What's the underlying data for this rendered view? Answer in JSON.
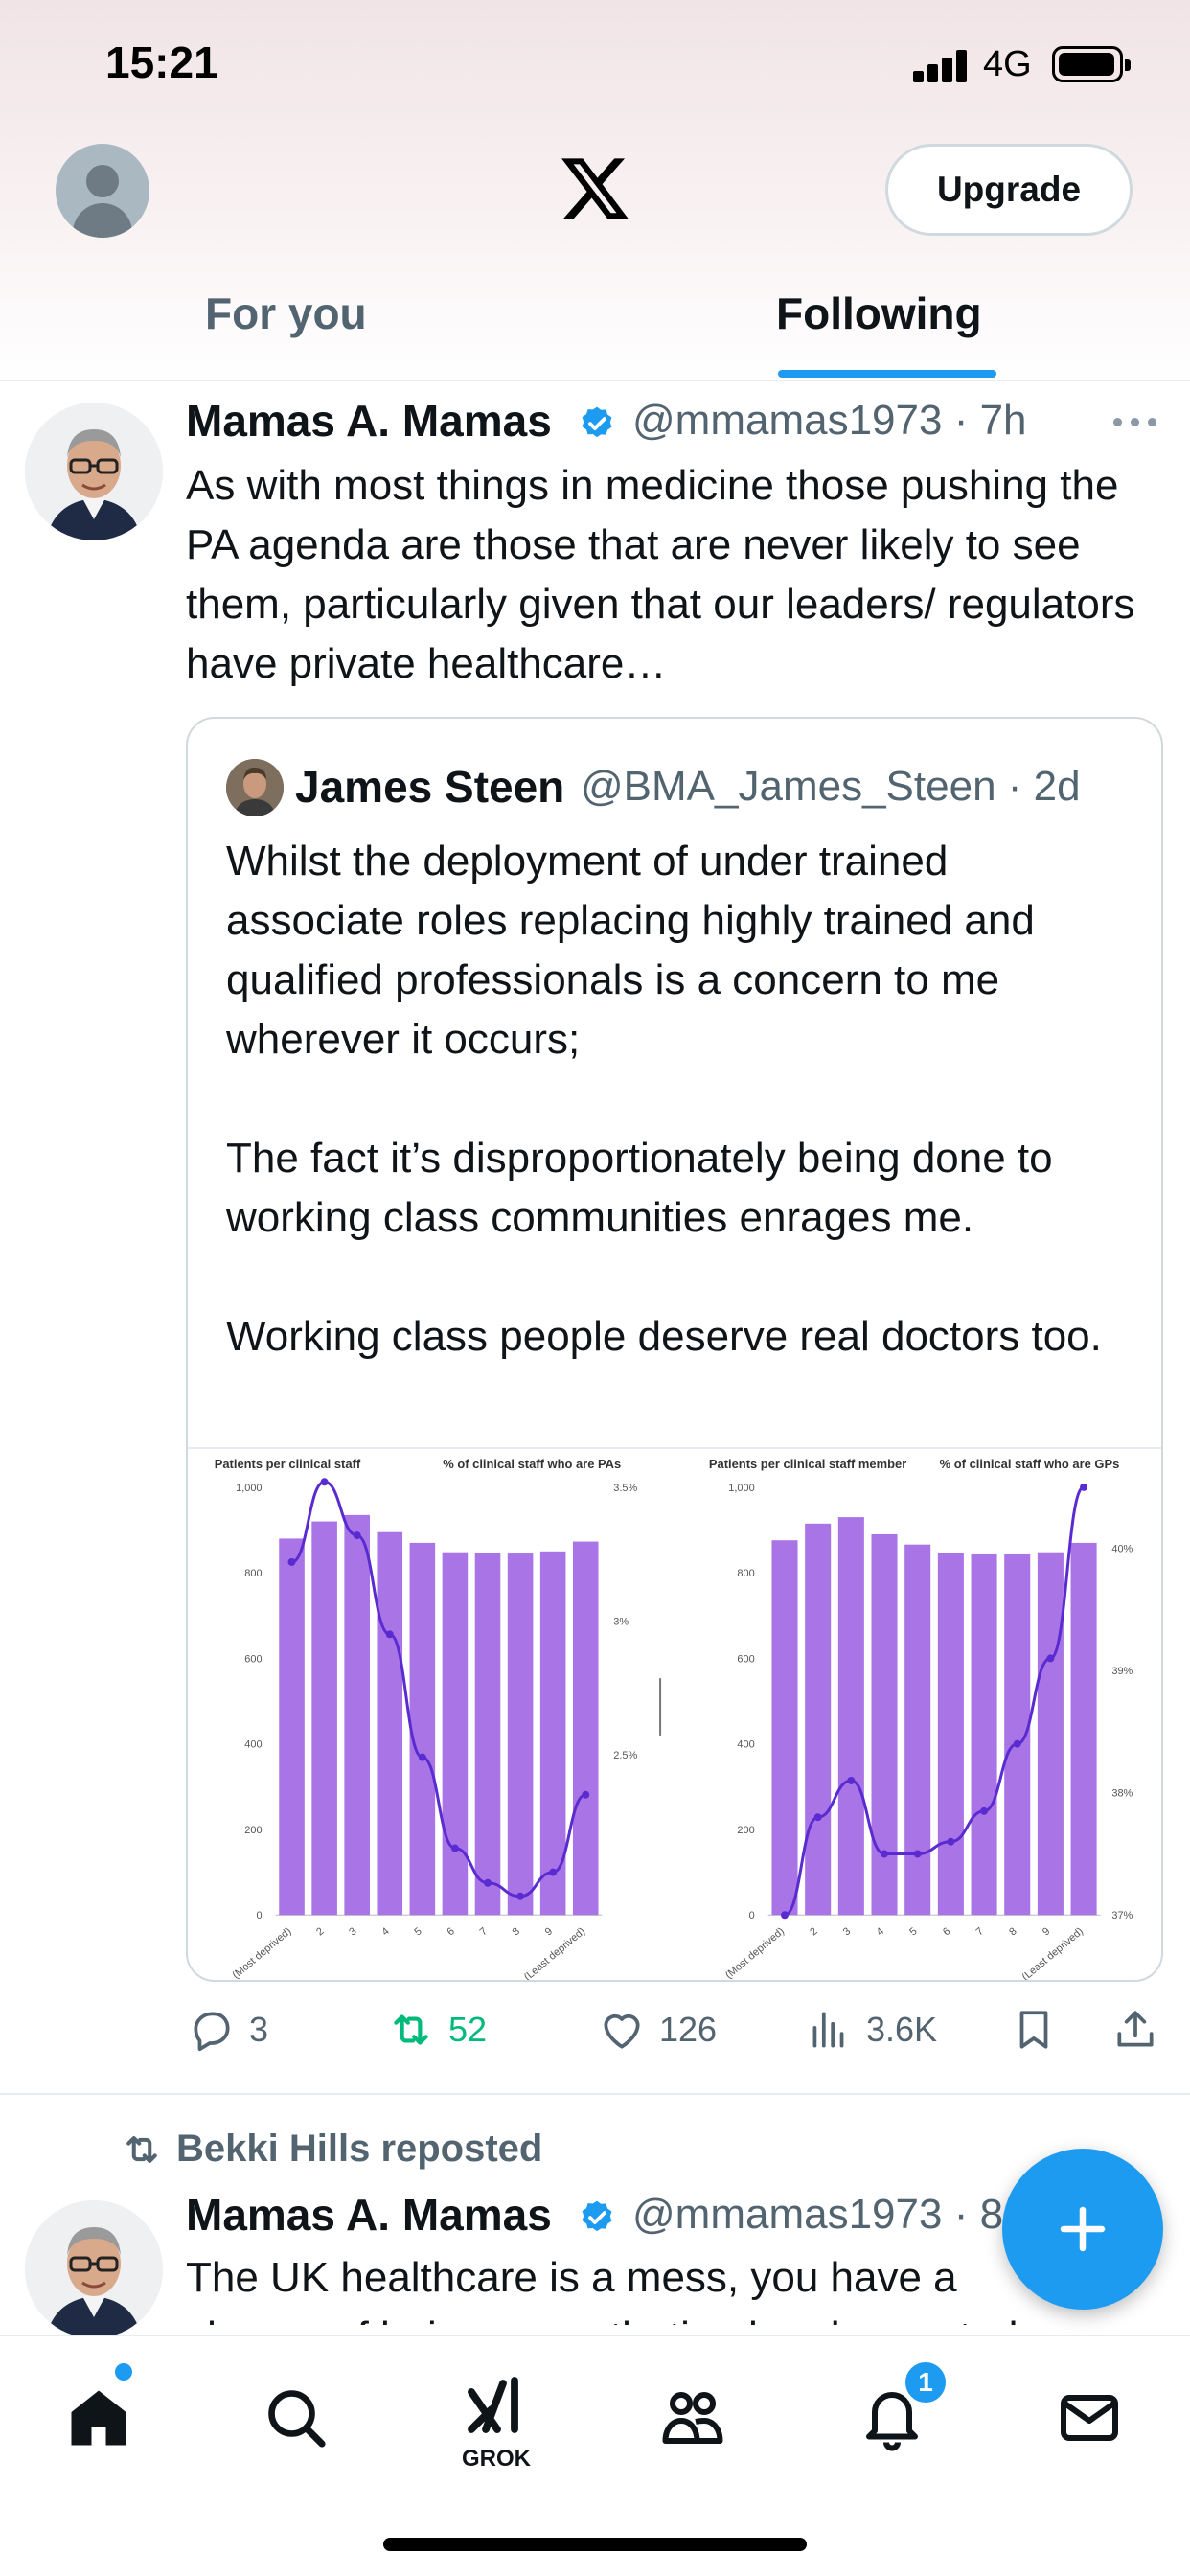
{
  "status_bar": {
    "time": "15:21",
    "network": "4G"
  },
  "top_nav": {
    "upgrade_label": "Upgrade"
  },
  "tabs": [
    {
      "label": "For you",
      "active": false
    },
    {
      "label": "Following",
      "active": true
    }
  ],
  "tweet": {
    "author_name": "Mamas A. Mamas",
    "handle": "@mmamas1973",
    "time": "· 7h",
    "text": "As with most things in medicine those pushing the PA agenda are those that are never likely to see them, particularly given that our leaders/ regulators have private healthcare…",
    "quote": {
      "author_name": "James Steen",
      "handle": "@BMA_James_Steen",
      "time": "· 2d",
      "paragraphs": [
        "Whilst the deployment of under trained associate roles replacing highly trained and qualified professionals is a concern to me wherever it occurs;",
        "The fact it’s disproportionately being done to working class communities enrages me.",
        "Working class people deserve real doctors too."
      ]
    },
    "actions": {
      "replies": "3",
      "reposts": "52",
      "likes": "126",
      "views": "3.6K"
    }
  },
  "second_tweet": {
    "repost_label": "Bekki Hills reposted",
    "author_name": "Mamas A. Mamas",
    "handle": "@mmamas1973",
    "time": "· 8",
    "text_line1": "The UK healthcare is a mess, you have a",
    "text_line2": "chance of being anaesthetised and operated on"
  },
  "bottom_nav": {
    "grok_label": "GROK",
    "notifications_badge": "1"
  },
  "colors": {
    "accent": "#1d9bf0",
    "repost_green": "#00ba7c",
    "bar_purple": "#a974e6",
    "line_purple": "#5a2bd0"
  },
  "chart_data": [
    {
      "type": "bar",
      "left_axis_title": "Patients per clinical staff",
      "right_axis_title": "% of clinical staff who are PAs",
      "categories": [
        "(Most deprived)",
        "2",
        "3",
        "4",
        "5",
        "6",
        "7",
        "8",
        "9",
        "(Least deprived)"
      ],
      "bars": [
        880,
        920,
        935,
        895,
        870,
        848,
        846,
        845,
        850,
        873
      ],
      "y_left_ticks": [
        "0",
        "200",
        "400",
        "600",
        "800",
        "1,000"
      ],
      "y_left_range": [
        0,
        1000
      ],
      "y_right_ticks": [
        "2.5%",
        "3%",
        "3.5%"
      ],
      "y_right_range": [
        1.9,
        3.5
      ],
      "line": [
        3.22,
        3.52,
        3.32,
        2.95,
        2.49,
        2.15,
        2.02,
        1.97,
        2.06,
        2.35
      ]
    },
    {
      "type": "bar",
      "left_axis_title": "Patients per clinical staff member",
      "right_axis_title": "% of clinical staff who are GPs",
      "categories": [
        "(Most deprived)",
        "2",
        "3",
        "4",
        "5",
        "6",
        "7",
        "8",
        "9",
        "(Least deprived)"
      ],
      "bars": [
        876,
        915,
        930,
        890,
        866,
        846,
        843,
        843,
        848,
        870
      ],
      "y_left_ticks": [
        "0",
        "200",
        "400",
        "600",
        "800",
        "1,000"
      ],
      "y_left_range": [
        0,
        1000
      ],
      "y_right_ticks": [
        "37%",
        "38%",
        "39%",
        "40%"
      ],
      "y_right_range": [
        37,
        40.5
      ],
      "line": [
        37,
        37.8,
        38.1,
        37.5,
        37.5,
        37.6,
        37.85,
        38.4,
        39.1,
        40.5
      ]
    }
  ]
}
